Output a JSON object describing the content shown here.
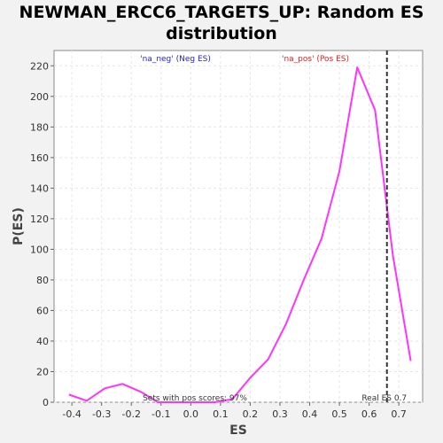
{
  "chart_data": {
    "type": "line",
    "title_line1": "NEWMAN_ERCC6_TARGETS_UP: Random ES",
    "title_line2": "distribution",
    "xlabel": "ES",
    "ylabel": "P(ES)",
    "xlim": [
      -0.46,
      0.78
    ],
    "ylim": [
      0,
      230
    ],
    "x_ticks": [
      -0.4,
      -0.3,
      -0.2,
      -0.1,
      0.0,
      0.1,
      0.2,
      0.3,
      0.4,
      0.5,
      0.6,
      0.7
    ],
    "x_tick_labels": [
      "-0.4",
      "-0.3",
      "-0.2",
      "-0.1",
      "0.0",
      "0.1",
      "0.2",
      "0.3",
      "0.4",
      "0.5",
      "0.6",
      "0.7"
    ],
    "y_ticks": [
      0,
      20,
      40,
      60,
      80,
      100,
      120,
      140,
      160,
      180,
      200,
      220
    ],
    "y_tick_labels": [
      "0",
      "20",
      "40",
      "60",
      "80",
      "100",
      "120",
      "140",
      "160",
      "180",
      "200",
      "220"
    ],
    "grid": true,
    "series": [
      {
        "color": "#ff33ff",
        "x": [
          -0.41,
          -0.35,
          -0.29,
          -0.23,
          -0.17,
          -0.11,
          -0.05,
          0.02,
          0.08,
          0.14,
          0.2,
          0.26,
          0.32,
          0.38,
          0.44,
          0.5,
          0.56,
          0.62,
          0.68,
          0.74
        ],
        "y": [
          5,
          1,
          9,
          12,
          7,
          0,
          0,
          0,
          0,
          2,
          16,
          28,
          51,
          80,
          107,
          151,
          219,
          191,
          96,
          27
        ]
      }
    ],
    "real_es": 0.66,
    "real_es_color": "#333333",
    "annotations": {
      "neg_label": "'na_neg' (Neg ES)",
      "neg_color": "#1f1fe6",
      "pos_label": "'na_pos' (Pos ES)",
      "pos_color": "#e61f1f",
      "pos_scores_text": "Sets with pos scores: 97%",
      "real_es_text": "Real ES 0.7"
    }
  }
}
